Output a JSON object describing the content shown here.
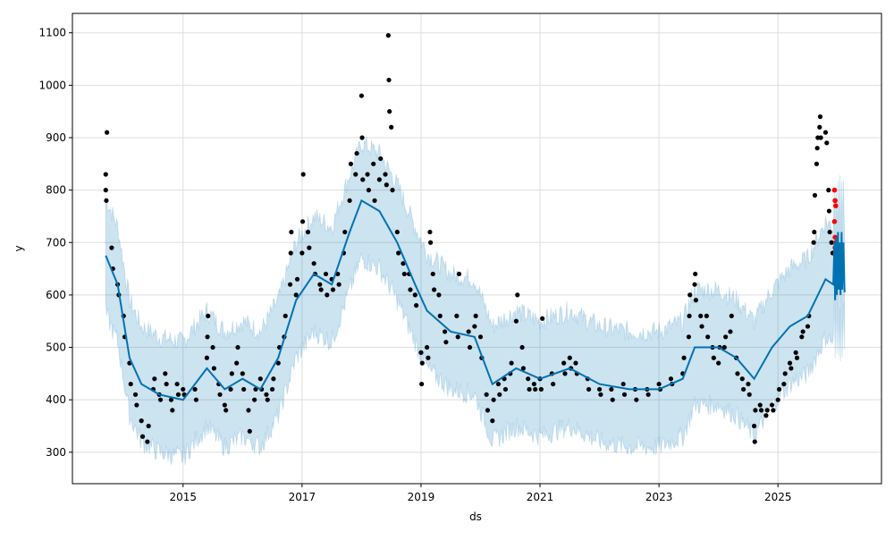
{
  "chart_data": {
    "type": "line",
    "title": "",
    "xlabel": "ds",
    "ylabel": "y",
    "xlim": [
      2013.14,
      2026.74
    ],
    "ylim": [
      240,
      1137
    ],
    "grid": true,
    "x_ticks": [
      {
        "v": 2015,
        "label": "2015"
      },
      {
        "v": 2017,
        "label": "2017"
      },
      {
        "v": 2019,
        "label": "2019"
      },
      {
        "v": 2021,
        "label": "2021"
      },
      {
        "v": 2023,
        "label": "2023"
      },
      {
        "v": 2025,
        "label": "2025"
      }
    ],
    "y_ticks": [
      300,
      400,
      500,
      600,
      700,
      800,
      900,
      1000,
      1100
    ],
    "colors": {
      "forecast": "#0072B2",
      "band": "#0072B2",
      "observed": "#000000",
      "recent": "#ff0000"
    },
    "interval_halfwidth": 110,
    "forecast": [
      [
        2013.7,
        675
      ],
      [
        2013.9,
        620
      ],
      [
        2014.1,
        480
      ],
      [
        2014.3,
        430
      ],
      [
        2014.6,
        410
      ],
      [
        2015.0,
        400
      ],
      [
        2015.4,
        460
      ],
      [
        2015.7,
        420
      ],
      [
        2016.0,
        440
      ],
      [
        2016.3,
        420
      ],
      [
        2016.6,
        480
      ],
      [
        2016.9,
        590
      ],
      [
        2017.2,
        640
      ],
      [
        2017.5,
        620
      ],
      [
        2017.8,
        720
      ],
      [
        2018.0,
        780
      ],
      [
        2018.3,
        760
      ],
      [
        2018.6,
        700
      ],
      [
        2018.9,
        620
      ],
      [
        2019.1,
        570
      ],
      [
        2019.5,
        530
      ],
      [
        2019.9,
        520
      ],
      [
        2020.2,
        430
      ],
      [
        2020.6,
        460
      ],
      [
        2021.0,
        440
      ],
      [
        2021.5,
        460
      ],
      [
        2022.0,
        430
      ],
      [
        2022.5,
        420
      ],
      [
        2023.0,
        420
      ],
      [
        2023.4,
        440
      ],
      [
        2023.6,
        500
      ],
      [
        2024.0,
        500
      ],
      [
        2024.3,
        480
      ],
      [
        2024.6,
        440
      ],
      [
        2024.9,
        500
      ],
      [
        2025.2,
        540
      ],
      [
        2025.5,
        560
      ],
      [
        2025.8,
        630
      ],
      [
        2025.93,
        620
      ],
      [
        2025.95,
        700
      ],
      [
        2025.96,
        590
      ],
      [
        2025.98,
        710
      ],
      [
        2025.99,
        600
      ],
      [
        2026.01,
        720
      ],
      [
        2026.02,
        610
      ],
      [
        2026.04,
        700
      ],
      [
        2026.05,
        600
      ],
      [
        2026.07,
        720
      ],
      [
        2026.08,
        610
      ],
      [
        2026.1,
        700
      ],
      [
        2026.12,
        605
      ]
    ],
    "observed": [
      [
        2013.7,
        830
      ],
      [
        2013.7,
        800
      ],
      [
        2013.71,
        780
      ],
      [
        2013.72,
        910
      ],
      [
        2013.8,
        690
      ],
      [
        2013.82,
        650
      ],
      [
        2013.9,
        620
      ],
      [
        2013.92,
        600
      ],
      [
        2014.0,
        560
      ],
      [
        2014.02,
        520
      ],
      [
        2014.1,
        470
      ],
      [
        2014.12,
        430
      ],
      [
        2014.2,
        410
      ],
      [
        2014.22,
        390
      ],
      [
        2014.3,
        360
      ],
      [
        2014.32,
        330
      ],
      [
        2014.4,
        320
      ],
      [
        2014.42,
        350
      ],
      [
        2014.5,
        420
      ],
      [
        2014.52,
        440
      ],
      [
        2014.6,
        410
      ],
      [
        2014.62,
        400
      ],
      [
        2014.7,
        450
      ],
      [
        2014.72,
        430
      ],
      [
        2014.8,
        400
      ],
      [
        2014.82,
        380
      ],
      [
        2014.9,
        430
      ],
      [
        2014.92,
        410
      ],
      [
        2015.0,
        420
      ],
      [
        2015.02,
        410
      ],
      [
        2015.2,
        420
      ],
      [
        2015.22,
        400
      ],
      [
        2015.4,
        480
      ],
      [
        2015.41,
        520
      ],
      [
        2015.42,
        560
      ],
      [
        2015.5,
        500
      ],
      [
        2015.52,
        460
      ],
      [
        2015.6,
        430
      ],
      [
        2015.62,
        410
      ],
      [
        2015.7,
        390
      ],
      [
        2015.72,
        380
      ],
      [
        2015.8,
        420
      ],
      [
        2015.82,
        450
      ],
      [
        2015.9,
        470
      ],
      [
        2015.92,
        500
      ],
      [
        2016.0,
        450
      ],
      [
        2016.02,
        420
      ],
      [
        2016.1,
        380
      ],
      [
        2016.12,
        340
      ],
      [
        2016.2,
        400
      ],
      [
        2016.22,
        420
      ],
      [
        2016.3,
        440
      ],
      [
        2016.32,
        420
      ],
      [
        2016.4,
        410
      ],
      [
        2016.42,
        400
      ],
      [
        2016.5,
        420
      ],
      [
        2016.52,
        440
      ],
      [
        2016.6,
        470
      ],
      [
        2016.62,
        500
      ],
      [
        2016.7,
        520
      ],
      [
        2016.72,
        560
      ],
      [
        2016.8,
        620
      ],
      [
        2016.81,
        680
      ],
      [
        2016.82,
        720
      ],
      [
        2016.9,
        600
      ],
      [
        2016.92,
        630
      ],
      [
        2017.0,
        680
      ],
      [
        2017.01,
        740
      ],
      [
        2017.02,
        830
      ],
      [
        2017.1,
        720
      ],
      [
        2017.12,
        690
      ],
      [
        2017.2,
        660
      ],
      [
        2017.22,
        640
      ],
      [
        2017.3,
        620
      ],
      [
        2017.32,
        610
      ],
      [
        2017.4,
        640
      ],
      [
        2017.42,
        600
      ],
      [
        2017.5,
        630
      ],
      [
        2017.52,
        610
      ],
      [
        2017.6,
        640
      ],
      [
        2017.62,
        620
      ],
      [
        2017.7,
        680
      ],
      [
        2017.72,
        720
      ],
      [
        2017.8,
        780
      ],
      [
        2017.82,
        850
      ],
      [
        2017.9,
        830
      ],
      [
        2017.92,
        870
      ],
      [
        2018.0,
        980
      ],
      [
        2018.01,
        900
      ],
      [
        2018.02,
        820
      ],
      [
        2018.1,
        830
      ],
      [
        2018.12,
        800
      ],
      [
        2018.2,
        850
      ],
      [
        2018.22,
        780
      ],
      [
        2018.3,
        820
      ],
      [
        2018.32,
        860
      ],
      [
        2018.4,
        830
      ],
      [
        2018.42,
        810
      ],
      [
        2018.45,
        1095
      ],
      [
        2018.46,
        1010
      ],
      [
        2018.47,
        950
      ],
      [
        2018.5,
        920
      ],
      [
        2018.52,
        800
      ],
      [
        2018.6,
        720
      ],
      [
        2018.62,
        680
      ],
      [
        2018.7,
        660
      ],
      [
        2018.72,
        640
      ],
      [
        2018.8,
        640
      ],
      [
        2018.82,
        610
      ],
      [
        2018.9,
        600
      ],
      [
        2018.92,
        580
      ],
      [
        2019.0,
        490
      ],
      [
        2019.01,
        430
      ],
      [
        2019.02,
        470
      ],
      [
        2019.1,
        500
      ],
      [
        2019.12,
        480
      ],
      [
        2019.15,
        720
      ],
      [
        2019.16,
        700
      ],
      [
        2019.2,
        640
      ],
      [
        2019.22,
        610
      ],
      [
        2019.3,
        600
      ],
      [
        2019.32,
        560
      ],
      [
        2019.4,
        530
      ],
      [
        2019.42,
        510
      ],
      [
        2019.6,
        560
      ],
      [
        2019.62,
        520
      ],
      [
        2019.64,
        640
      ],
      [
        2019.8,
        530
      ],
      [
        2019.82,
        500
      ],
      [
        2019.9,
        540
      ],
      [
        2019.92,
        560
      ],
      [
        2020.0,
        520
      ],
      [
        2020.02,
        480
      ],
      [
        2020.1,
        410
      ],
      [
        2020.12,
        380
      ],
      [
        2020.2,
        360
      ],
      [
        2020.22,
        400
      ],
      [
        2020.3,
        430
      ],
      [
        2020.32,
        410
      ],
      [
        2020.4,
        440
      ],
      [
        2020.42,
        420
      ],
      [
        2020.5,
        450
      ],
      [
        2020.52,
        470
      ],
      [
        2020.6,
        550
      ],
      [
        2020.62,
        600
      ],
      [
        2020.7,
        500
      ],
      [
        2020.72,
        460
      ],
      [
        2020.8,
        440
      ],
      [
        2020.82,
        420
      ],
      [
        2020.9,
        430
      ],
      [
        2020.92,
        420
      ],
      [
        2021.0,
        440
      ],
      [
        2021.02,
        420
      ],
      [
        2021.04,
        555
      ],
      [
        2021.2,
        450
      ],
      [
        2021.22,
        430
      ],
      [
        2021.4,
        470
      ],
      [
        2021.42,
        450
      ],
      [
        2021.5,
        480
      ],
      [
        2021.52,
        460
      ],
      [
        2021.6,
        470
      ],
      [
        2021.62,
        450
      ],
      [
        2021.8,
        440
      ],
      [
        2021.82,
        420
      ],
      [
        2022.0,
        420
      ],
      [
        2022.02,
        410
      ],
      [
        2022.2,
        420
      ],
      [
        2022.22,
        400
      ],
      [
        2022.4,
        430
      ],
      [
        2022.42,
        410
      ],
      [
        2022.6,
        420
      ],
      [
        2022.62,
        400
      ],
      [
        2022.8,
        420
      ],
      [
        2022.82,
        410
      ],
      [
        2023.0,
        430
      ],
      [
        2023.02,
        420
      ],
      [
        2023.2,
        440
      ],
      [
        2023.22,
        430
      ],
      [
        2023.4,
        450
      ],
      [
        2023.42,
        480
      ],
      [
        2023.5,
        520
      ],
      [
        2023.51,
        560
      ],
      [
        2023.52,
        600
      ],
      [
        2023.6,
        620
      ],
      [
        2023.61,
        640
      ],
      [
        2023.62,
        590
      ],
      [
        2023.7,
        560
      ],
      [
        2023.72,
        540
      ],
      [
        2023.8,
        560
      ],
      [
        2023.82,
        520
      ],
      [
        2023.9,
        500
      ],
      [
        2023.92,
        480
      ],
      [
        2024.0,
        470
      ],
      [
        2024.02,
        500
      ],
      [
        2024.1,
        500
      ],
      [
        2024.12,
        520
      ],
      [
        2024.2,
        530
      ],
      [
        2024.22,
        560
      ],
      [
        2024.3,
        480
      ],
      [
        2024.32,
        450
      ],
      [
        2024.4,
        440
      ],
      [
        2024.42,
        420
      ],
      [
        2024.5,
        430
      ],
      [
        2024.52,
        410
      ],
      [
        2024.6,
        350
      ],
      [
        2024.61,
        320
      ],
      [
        2024.62,
        380
      ],
      [
        2024.7,
        390
      ],
      [
        2024.72,
        380
      ],
      [
        2024.8,
        370
      ],
      [
        2024.82,
        380
      ],
      [
        2024.9,
        390
      ],
      [
        2024.92,
        380
      ],
      [
        2025.0,
        400
      ],
      [
        2025.02,
        420
      ],
      [
        2025.1,
        430
      ],
      [
        2025.12,
        450
      ],
      [
        2025.2,
        470
      ],
      [
        2025.22,
        460
      ],
      [
        2025.3,
        490
      ],
      [
        2025.32,
        480
      ],
      [
        2025.4,
        520
      ],
      [
        2025.42,
        530
      ],
      [
        2025.5,
        540
      ],
      [
        2025.52,
        560
      ],
      [
        2025.6,
        700
      ],
      [
        2025.61,
        720
      ],
      [
        2025.62,
        790
      ],
      [
        2025.65,
        850
      ],
      [
        2025.66,
        880
      ],
      [
        2025.67,
        900
      ],
      [
        2025.7,
        920
      ],
      [
        2025.71,
        940
      ],
      [
        2025.72,
        900
      ],
      [
        2025.8,
        910
      ],
      [
        2025.82,
        890
      ],
      [
        2025.85,
        800
      ],
      [
        2025.86,
        760
      ],
      [
        2025.87,
        720
      ],
      [
        2025.9,
        700
      ],
      [
        2025.92,
        680
      ]
    ],
    "recent_observed": [
      [
        2025.95,
        800
      ],
      [
        2025.96,
        780
      ],
      [
        2025.97,
        770
      ],
      [
        2025.95,
        740
      ],
      [
        2025.96,
        710
      ],
      [
        2025.97,
        700
      ],
      [
        2025.96,
        690
      ]
    ]
  }
}
